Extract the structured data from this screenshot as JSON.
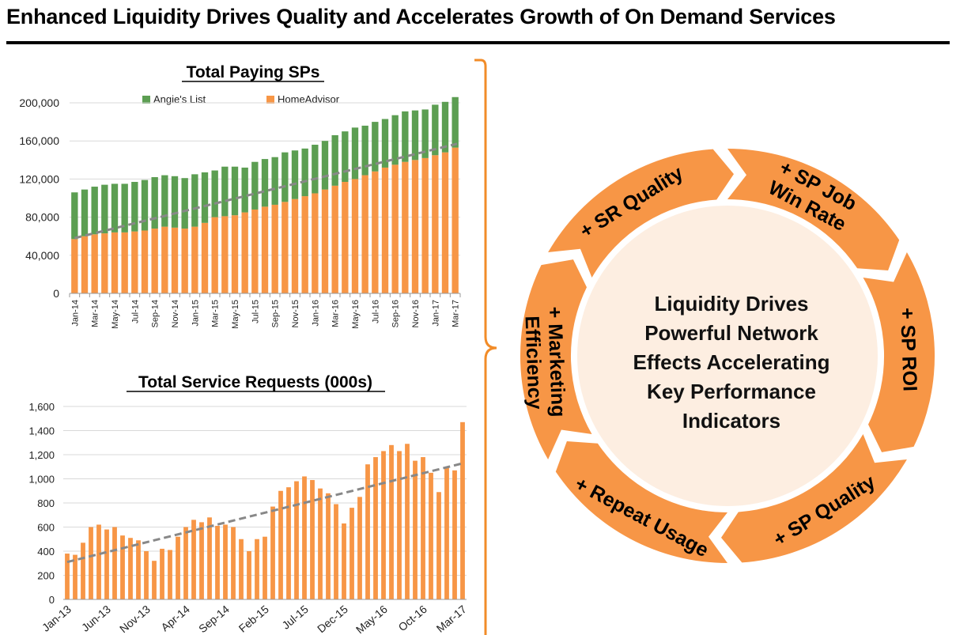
{
  "header": {
    "title": "Enhanced Liquidity Drives Quality and Accelerates Growth of On Demand Services"
  },
  "colors": {
    "orange": "#F79646",
    "green": "#5C9E52",
    "trend": "#888888",
    "circle_fill": "#FDEEE1",
    "bracket": "#F28C28"
  },
  "chart_data": [
    {
      "type": "bar",
      "stacked": true,
      "title": "Total Paying SPs",
      "legend_position": "top",
      "ylim": [
        0,
        200000
      ],
      "y_ticks": [
        "200,000",
        "160,000",
        "120,000",
        "80,000",
        "40,000",
        "0"
      ],
      "x_tick_labels": [
        "Jan-14",
        "Mar-14",
        "May-14",
        "Jul-14",
        "Sep-14",
        "Nov-14",
        "Jan-15",
        "Mar-15",
        "May-15",
        "Jul-15",
        "Sep-15",
        "Nov-15",
        "Jan-16",
        "Mar-16",
        "May-16",
        "Jul-16",
        "Sep-16",
        "Nov-16",
        "Jan-17",
        "Mar-17"
      ],
      "categories": [
        "Jan-14",
        "Feb-14",
        "Mar-14",
        "Apr-14",
        "May-14",
        "Jun-14",
        "Jul-14",
        "Aug-14",
        "Sep-14",
        "Oct-14",
        "Nov-14",
        "Dec-14",
        "Jan-15",
        "Feb-15",
        "Mar-15",
        "Apr-15",
        "May-15",
        "Jun-15",
        "Jul-15",
        "Aug-15",
        "Sep-15",
        "Oct-15",
        "Nov-15",
        "Dec-15",
        "Jan-16",
        "Feb-16",
        "Mar-16",
        "Apr-16",
        "May-16",
        "Jun-16",
        "Jul-16",
        "Aug-16",
        "Sep-16",
        "Oct-16",
        "Nov-16",
        "Dec-16",
        "Jan-17",
        "Feb-17",
        "Mar-17"
      ],
      "series": [
        {
          "name": "HomeAdvisor",
          "color": "#F79646",
          "values": [
            57000,
            60000,
            62000,
            63000,
            64000,
            64000,
            65000,
            66000,
            68000,
            70000,
            69000,
            68000,
            70000,
            74000,
            80000,
            81000,
            82000,
            85000,
            88000,
            91000,
            93000,
            96000,
            99000,
            102000,
            105000,
            109000,
            113000,
            117000,
            120000,
            124000,
            128000,
            132000,
            135000,
            138000,
            140000,
            142000,
            145000,
            148000,
            153000
          ]
        },
        {
          "name": "Angie's List",
          "color": "#5C9E52",
          "values": [
            49000,
            49000,
            50000,
            51000,
            51000,
            51000,
            52000,
            53000,
            54000,
            54000,
            54000,
            53000,
            55000,
            53000,
            49000,
            52000,
            51000,
            47000,
            50000,
            50000,
            50000,
            52000,
            51000,
            50000,
            51000,
            51000,
            53000,
            53000,
            54000,
            52000,
            52000,
            51000,
            52000,
            53000,
            52000,
            51000,
            53000,
            53000,
            53000
          ]
        }
      ],
      "trend_line": {
        "from": 58000,
        "to": 157000
      }
    },
    {
      "type": "bar",
      "title": "Total Service Requests (000s)",
      "ylim": [
        0,
        1600
      ],
      "y_ticks": [
        "1,600",
        "1,400",
        "1,200",
        "1,000",
        "800",
        "600",
        "400",
        "200",
        "0"
      ],
      "x_tick_labels": [
        "Jan-13",
        "Jun-13",
        "Nov-13",
        "Apr-14",
        "Sep-14",
        "Feb-15",
        "Jul-15",
        "Dec-15",
        "May-16",
        "Oct-16",
        "Mar-17"
      ],
      "categories": [
        "Jan-13",
        "Feb-13",
        "Mar-13",
        "Apr-13",
        "May-13",
        "Jun-13",
        "Jul-13",
        "Aug-13",
        "Sep-13",
        "Oct-13",
        "Nov-13",
        "Dec-13",
        "Jan-14",
        "Feb-14",
        "Mar-14",
        "Apr-14",
        "May-14",
        "Jun-14",
        "Jul-14",
        "Aug-14",
        "Sep-14",
        "Oct-14",
        "Nov-14",
        "Dec-14",
        "Jan-15",
        "Feb-15",
        "Mar-15",
        "Apr-15",
        "May-15",
        "Jun-15",
        "Jul-15",
        "Aug-15",
        "Sep-15",
        "Oct-15",
        "Nov-15",
        "Dec-15",
        "Jan-16",
        "Feb-16",
        "Mar-16",
        "Apr-16",
        "May-16",
        "Jun-16",
        "Jul-16",
        "Aug-16",
        "Sep-16",
        "Oct-16",
        "Nov-16",
        "Dec-16",
        "Jan-17",
        "Feb-17",
        "Mar-17"
      ],
      "series": [
        {
          "name": "",
          "color": "#F79646",
          "values": [
            380,
            370,
            470,
            600,
            620,
            580,
            600,
            530,
            510,
            490,
            400,
            320,
            420,
            410,
            520,
            600,
            660,
            640,
            680,
            610,
            620,
            600,
            500,
            400,
            500,
            520,
            770,
            900,
            930,
            980,
            1020,
            990,
            920,
            880,
            790,
            630,
            760,
            850,
            1120,
            1180,
            1230,
            1280,
            1230,
            1290,
            1150,
            1180,
            1050,
            890,
            1100,
            1070,
            1470
          ]
        }
      ],
      "trend_line": {
        "from": 310,
        "to": 1130
      }
    }
  ],
  "cycle": {
    "center_lines": [
      "Liquidity Drives",
      "Powerful Network",
      "Effects Accelerating",
      "Key Performance",
      "Indicators"
    ],
    "segments": [
      {
        "name": "segment-marketing-efficiency",
        "lines": [
          "+ Marketing",
          "Efficiency"
        ]
      },
      {
        "name": "segment-sr-quality",
        "lines": [
          "+ SR Quality"
        ]
      },
      {
        "name": "segment-sp-job-win-rate",
        "lines": [
          "+ SP Job",
          "Win Rate"
        ]
      },
      {
        "name": "segment-sp-roi",
        "lines": [
          "+ SP ROI"
        ]
      },
      {
        "name": "segment-sp-quality",
        "lines": [
          "+ SP Quality"
        ]
      },
      {
        "name": "segment-repeat-usage",
        "lines": [
          "+ Repeat Usage"
        ]
      }
    ]
  }
}
